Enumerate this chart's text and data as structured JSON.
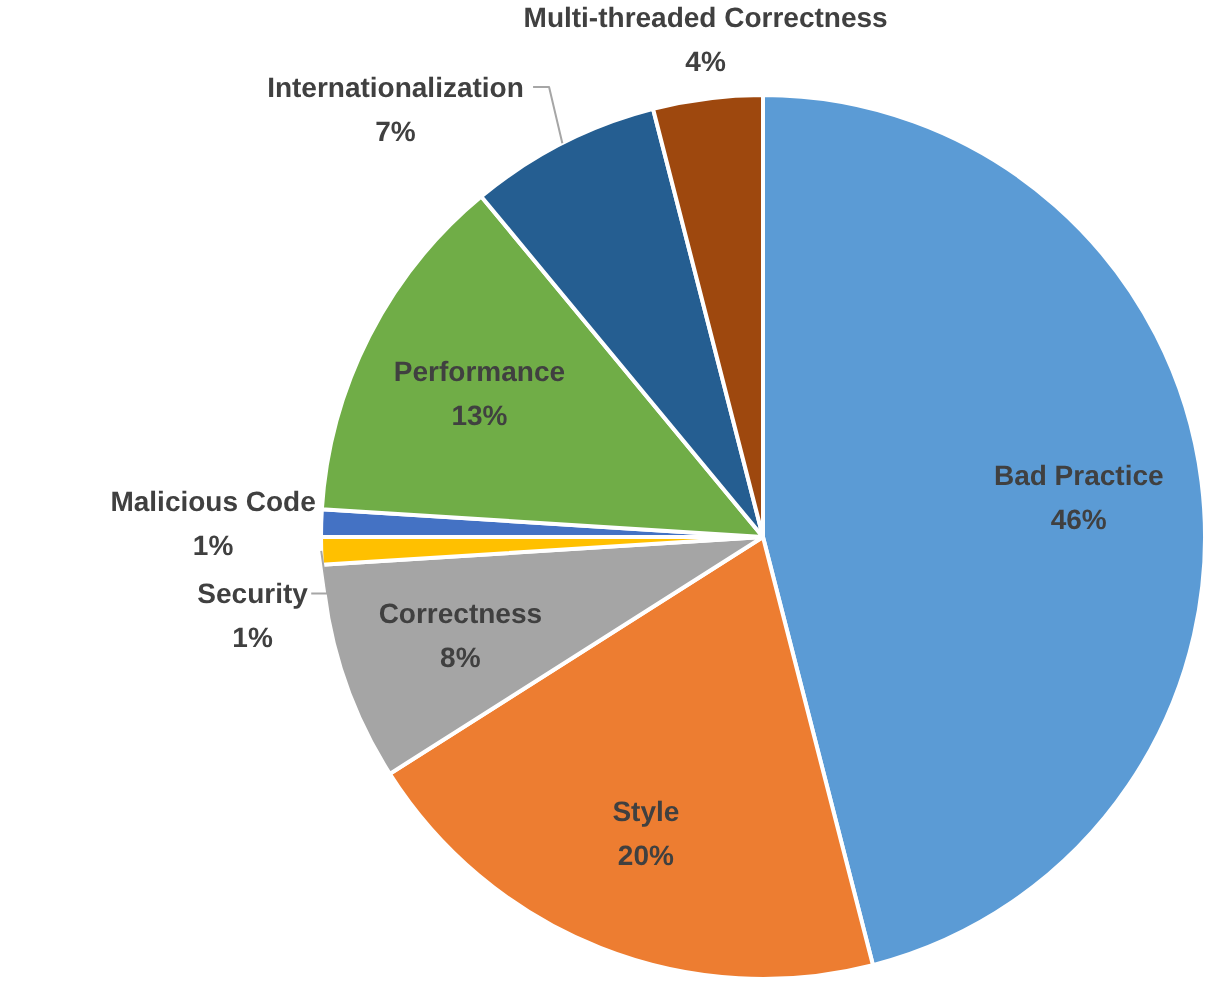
{
  "chart_data": {
    "type": "pie",
    "categories": [
      "Bad Practice",
      "Style",
      "Correctness",
      "Security",
      "Malicious Code",
      "Performance",
      "Internationalization",
      "Multi-threaded Correctness"
    ],
    "values": [
      46,
      20,
      8,
      1,
      1,
      13,
      7,
      4
    ],
    "colors": [
      "#5b9bd5",
      "#ed7d31",
      "#a5a5a5",
      "#ffc000",
      "#4472c4",
      "#70ad47",
      "#255e91",
      "#9e480e"
    ],
    "value_labels": [
      "46%",
      "20%",
      "8%",
      "1%",
      "1%",
      "13%",
      "7%",
      "4%"
    ]
  }
}
